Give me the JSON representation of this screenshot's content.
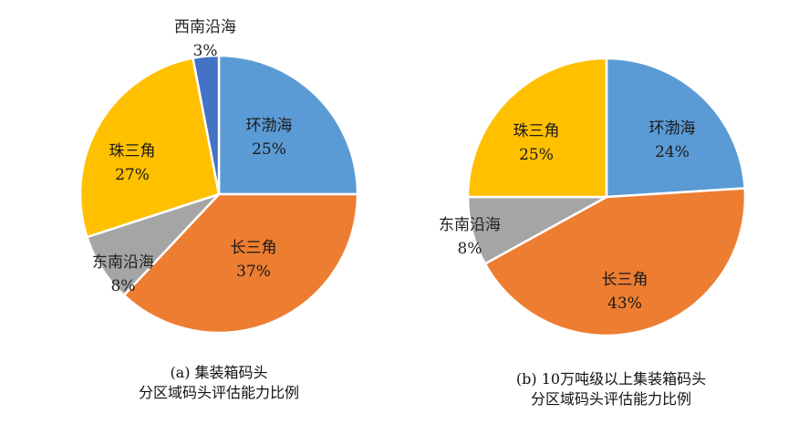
{
  "chart_data": [
    {
      "type": "pie",
      "caption_line1": "(a) 集装箱码头",
      "caption_line2": "分区域码头评估能力比例",
      "slices": [
        {
          "name": "环渤海",
          "value": 25,
          "label": "25%",
          "color": "#5B9BD5"
        },
        {
          "name": "长三角",
          "value": 37,
          "label": "37%",
          "color": "#ED7D31"
        },
        {
          "name": "东南沿海",
          "value": 8,
          "label": "8%",
          "color": "#A5A5A5"
        },
        {
          "name": "珠三角",
          "value": 27,
          "label": "27%",
          "color": "#FFC000"
        },
        {
          "name": "西南沿海",
          "value": 3,
          "label": "3%",
          "color": "#4472C4"
        }
      ]
    },
    {
      "type": "pie",
      "caption_line1": "(b) 10万吨级以上集装箱码头",
      "caption_line2": "分区域码头评估能力比例",
      "slices": [
        {
          "name": "环渤海",
          "value": 24,
          "label": "24%",
          "color": "#5B9BD5"
        },
        {
          "name": "长三角",
          "value": 43,
          "label": "43%",
          "color": "#ED7D31"
        },
        {
          "name": "东南沿海",
          "value": 8,
          "label": "8%",
          "color": "#A5A5A5"
        },
        {
          "name": "珠三角",
          "value": 25,
          "label": "25%",
          "color": "#FFC000"
        }
      ]
    }
  ]
}
